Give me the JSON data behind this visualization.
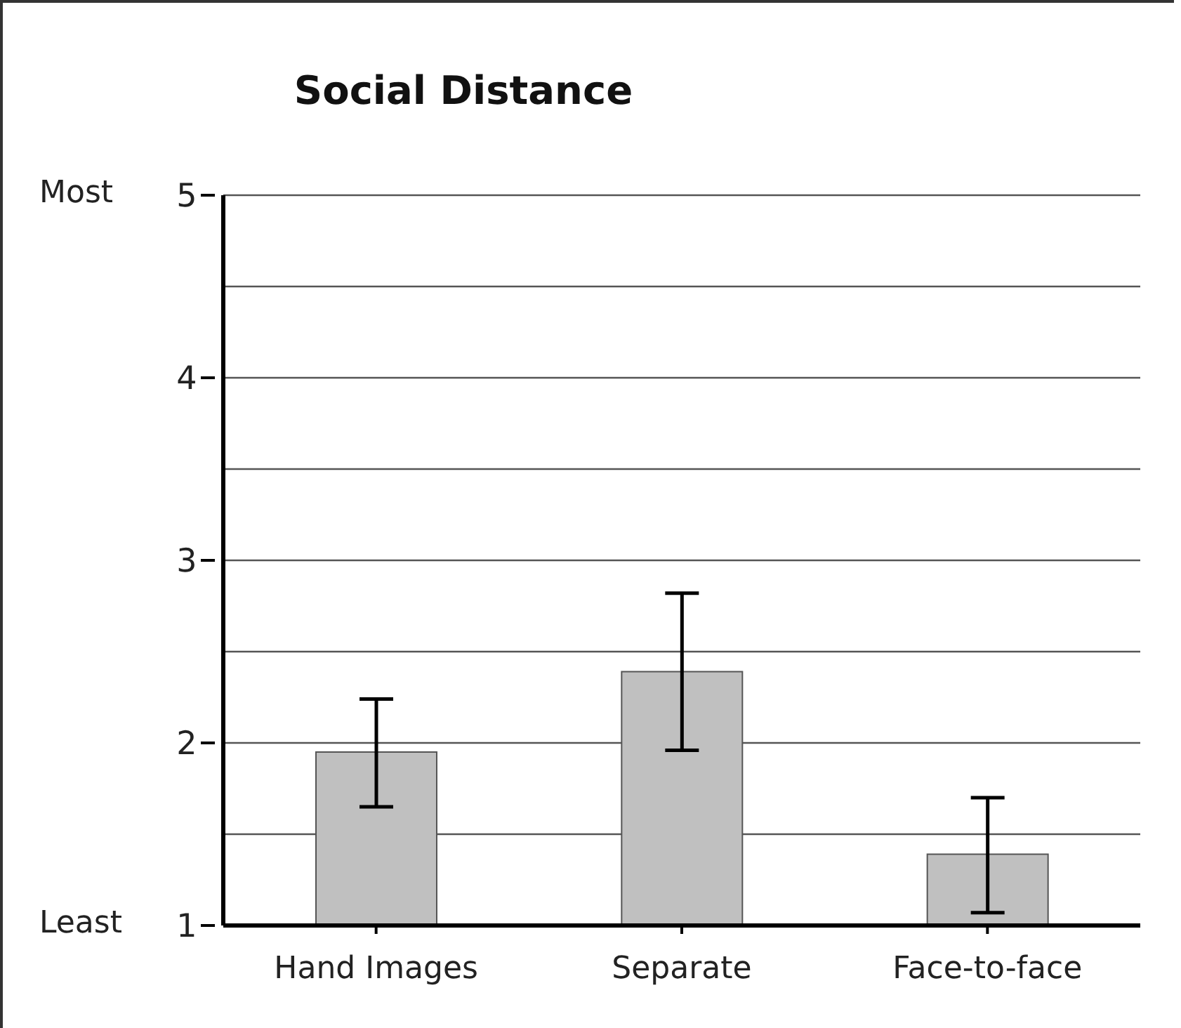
{
  "chart_data": {
    "type": "bar",
    "title": "Social Distance",
    "categories": [
      "Hand Images",
      "Separate",
      "Face-to-face"
    ],
    "values": [
      1.95,
      2.39,
      1.39
    ],
    "errors": [
      [
        1.65,
        2.24
      ],
      [
        1.96,
        2.82
      ],
      [
        1.07,
        1.7
      ]
    ],
    "color": "#c0c0c0",
    "ylim": [
      1,
      5
    ],
    "yticks": [
      1,
      {
        "value": 1.5,
        "label": null
      },
      2,
      {
        "value": 2.5,
        "label": null
      },
      3,
      {
        "value": 3.5,
        "label": null
      },
      4,
      {
        "value": 4.5,
        "label": null
      },
      5
    ],
    "grid": "y",
    "annotations": [
      "Most",
      "Least"
    ]
  }
}
